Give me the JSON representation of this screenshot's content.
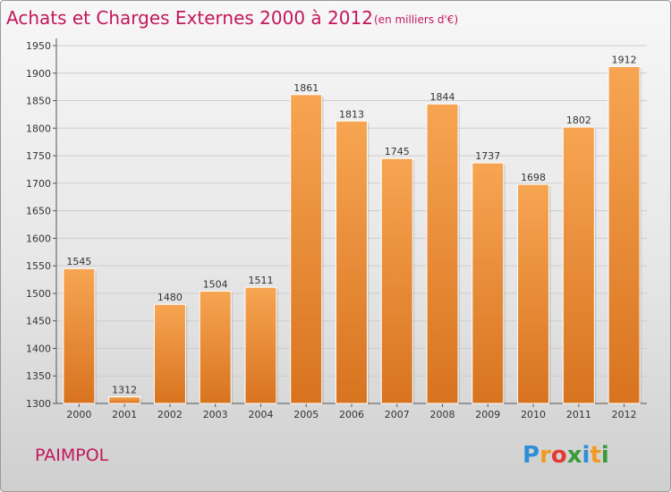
{
  "chart_data": {
    "type": "bar",
    "title": "Achats et Charges Externes 2000 à 2012",
    "subtitle": "(en milliers d'€)",
    "xlabel": "",
    "ylabel": "",
    "categories": [
      "2000",
      "2001",
      "2002",
      "2003",
      "2004",
      "2005",
      "2006",
      "2007",
      "2008",
      "2009",
      "2010",
      "2011",
      "2012"
    ],
    "values": [
      1545,
      1312,
      1480,
      1504,
      1511,
      1861,
      1813,
      1745,
      1844,
      1737,
      1698,
      1802,
      1912
    ],
    "ylim": [
      1300,
      1950
    ],
    "yticks": [
      1300,
      1350,
      1400,
      1450,
      1500,
      1550,
      1600,
      1650,
      1700,
      1750,
      1800,
      1850,
      1900,
      1950
    ],
    "grid": true,
    "legend": "none",
    "bar_color": "#f0963c"
  },
  "place_name": "PAIMPOL",
  "logo": {
    "text": "Proxiti",
    "letters": [
      "P",
      "r",
      "o",
      "x",
      "i",
      "t",
      "i"
    ],
    "colors": [
      "#2e8fd6",
      "#f29a1f",
      "#e53935",
      "#3a9b3a",
      "#2e8fd6",
      "#f29a1f",
      "#3a9b3a"
    ]
  }
}
